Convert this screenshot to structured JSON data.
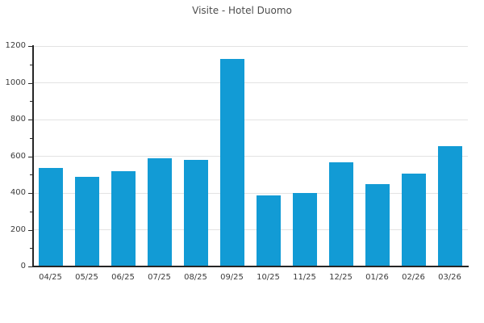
{
  "chart_data": {
    "type": "bar",
    "title": "Visite - Hotel Duomo",
    "categories": [
      "04/25",
      "05/25",
      "06/25",
      "07/25",
      "08/25",
      "09/25",
      "10/25",
      "11/25",
      "12/25",
      "01/26",
      "02/26",
      "03/26"
    ],
    "values": [
      535,
      490,
      520,
      590,
      580,
      1130,
      385,
      400,
      565,
      450,
      505,
      655
    ],
    "xlabel": "",
    "ylabel": "",
    "ylim": [
      0,
      1200
    ],
    "yticks": [
      0,
      200,
      400,
      600,
      800,
      1000,
      1200
    ],
    "minor_ytick_step": 100,
    "grid": "horizontal-major-only",
    "legend": "none",
    "colors": {
      "bar": "#129bd5",
      "axis": "#262626",
      "grid": "#e3e3e3",
      "tick_label": "#3b3b3b",
      "title": "#4d4d4d",
      "background": "#ffffff"
    }
  }
}
